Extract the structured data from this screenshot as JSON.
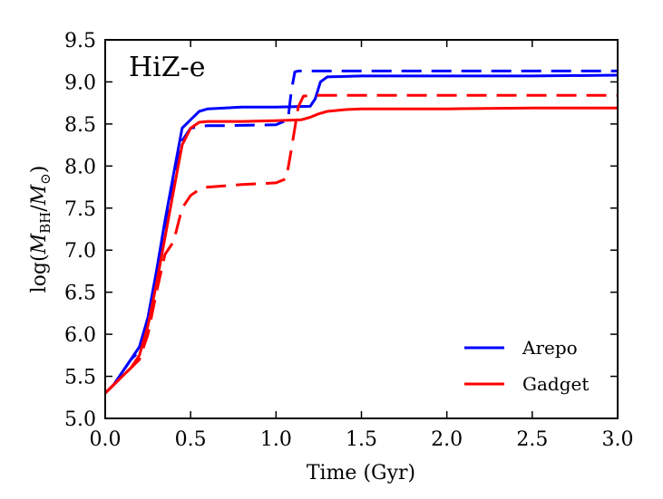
{
  "chart_data": {
    "type": "line",
    "panel_label": "HiZ-e",
    "xlabel": "Time (Gyr)",
    "ylabel": {
      "prefix": "log(",
      "mvar": "M",
      "msub": "BH",
      "mid": "/",
      "mvar2": "M",
      "msub2": "⊙",
      "suffix": ")"
    },
    "xlim": [
      0.0,
      3.0
    ],
    "ylim": [
      5.0,
      9.5
    ],
    "xticks": [
      0.0,
      0.5,
      1.0,
      1.5,
      2.0,
      2.5,
      3.0
    ],
    "xtick_labels": [
      "0.0",
      "0.5",
      "1.0",
      "1.5",
      "2.0",
      "2.5",
      "3.0"
    ],
    "yticks": [
      5.0,
      5.5,
      6.0,
      6.5,
      7.0,
      7.5,
      8.0,
      8.5,
      9.0,
      9.5
    ],
    "ytick_labels": [
      "5.0",
      "5.5",
      "6.0",
      "6.5",
      "7.0",
      "7.5",
      "8.0",
      "8.5",
      "9.0",
      "9.5"
    ],
    "grid": false,
    "legend_position": "bottom-right",
    "legend": [
      {
        "label": "Arepo",
        "color": "#0000ff"
      },
      {
        "label": "Gadget",
        "color": "#ff0000"
      }
    ],
    "series": [
      {
        "color": "#0000ff",
        "style": "solid",
        "x": [
          0.0,
          0.05,
          0.1,
          0.15,
          0.2,
          0.25,
          0.3,
          0.35,
          0.4,
          0.45,
          0.5,
          0.55,
          0.6,
          0.7,
          0.8,
          1.0,
          1.2,
          1.23,
          1.26,
          1.3,
          1.5,
          2.0,
          2.5,
          3.0
        ],
        "y": [
          5.3,
          5.4,
          5.55,
          5.7,
          5.85,
          6.2,
          6.75,
          7.35,
          7.9,
          8.45,
          8.55,
          8.65,
          8.68,
          8.69,
          8.7,
          8.7,
          8.71,
          8.8,
          9.0,
          9.06,
          9.07,
          9.07,
          9.07,
          9.08
        ]
      },
      {
        "color": "#0000ff",
        "style": "dashed",
        "x": [
          0.0,
          0.05,
          0.1,
          0.15,
          0.2,
          0.25,
          0.3,
          0.35,
          0.4,
          0.45,
          0.5,
          0.55,
          0.6,
          0.7,
          1.0,
          1.07,
          1.09,
          1.11,
          1.13,
          1.5,
          2.0,
          2.5,
          3.0
        ],
        "y": [
          5.3,
          5.4,
          5.55,
          5.7,
          5.8,
          6.1,
          6.65,
          7.25,
          7.85,
          8.3,
          8.45,
          8.47,
          8.48,
          8.48,
          8.49,
          8.55,
          8.9,
          9.12,
          9.13,
          9.13,
          9.13,
          9.13,
          9.13
        ]
      },
      {
        "color": "#ff0000",
        "style": "solid",
        "x": [
          0.0,
          0.05,
          0.1,
          0.15,
          0.2,
          0.25,
          0.3,
          0.35,
          0.4,
          0.45,
          0.5,
          0.55,
          0.6,
          0.8,
          1.0,
          1.15,
          1.2,
          1.25,
          1.3,
          1.4,
          1.5,
          2.0,
          2.5,
          3.0
        ],
        "y": [
          5.3,
          5.4,
          5.5,
          5.6,
          5.75,
          6.1,
          6.6,
          7.15,
          7.7,
          8.25,
          8.45,
          8.52,
          8.53,
          8.53,
          8.54,
          8.55,
          8.58,
          8.62,
          8.65,
          8.67,
          8.68,
          8.68,
          8.69,
          8.69
        ]
      },
      {
        "color": "#ff0000",
        "style": "dashed",
        "x": [
          0.0,
          0.05,
          0.1,
          0.15,
          0.2,
          0.25,
          0.3,
          0.35,
          0.4,
          0.45,
          0.5,
          0.55,
          0.6,
          0.8,
          1.0,
          1.06,
          1.09,
          1.13,
          1.16,
          1.2,
          1.5,
          2.0,
          2.5,
          3.0
        ],
        "y": [
          5.3,
          5.4,
          5.5,
          5.6,
          5.7,
          6.0,
          6.5,
          6.95,
          7.1,
          7.5,
          7.65,
          7.72,
          7.75,
          7.78,
          7.8,
          7.85,
          8.2,
          8.7,
          8.83,
          8.84,
          8.84,
          8.84,
          8.84,
          8.84
        ]
      }
    ]
  }
}
